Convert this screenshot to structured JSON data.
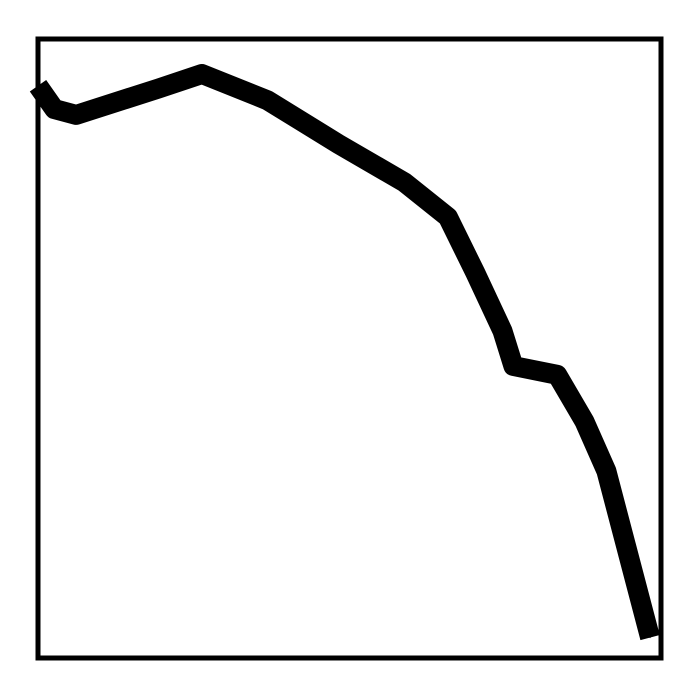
{
  "chart_data": {
    "type": "line",
    "title": "",
    "xlabel": "",
    "ylabel": "",
    "grid": false,
    "legend": "none",
    "x": [
      0,
      3,
      7,
      22,
      30,
      42,
      55,
      67,
      75,
      80,
      85,
      87,
      95,
      100,
      104,
      112
    ],
    "series": [
      {
        "values": [
          98,
          94,
          93,
          97.5,
          100,
          95.5,
          88,
          81.5,
          75.5,
          66,
          56,
          50,
          48.5,
          40.5,
          32,
          3.5
        ],
        "color": "#000000"
      }
    ],
    "xlim": [
      0,
      114
    ],
    "ylim": [
      0,
      106
    ]
  }
}
